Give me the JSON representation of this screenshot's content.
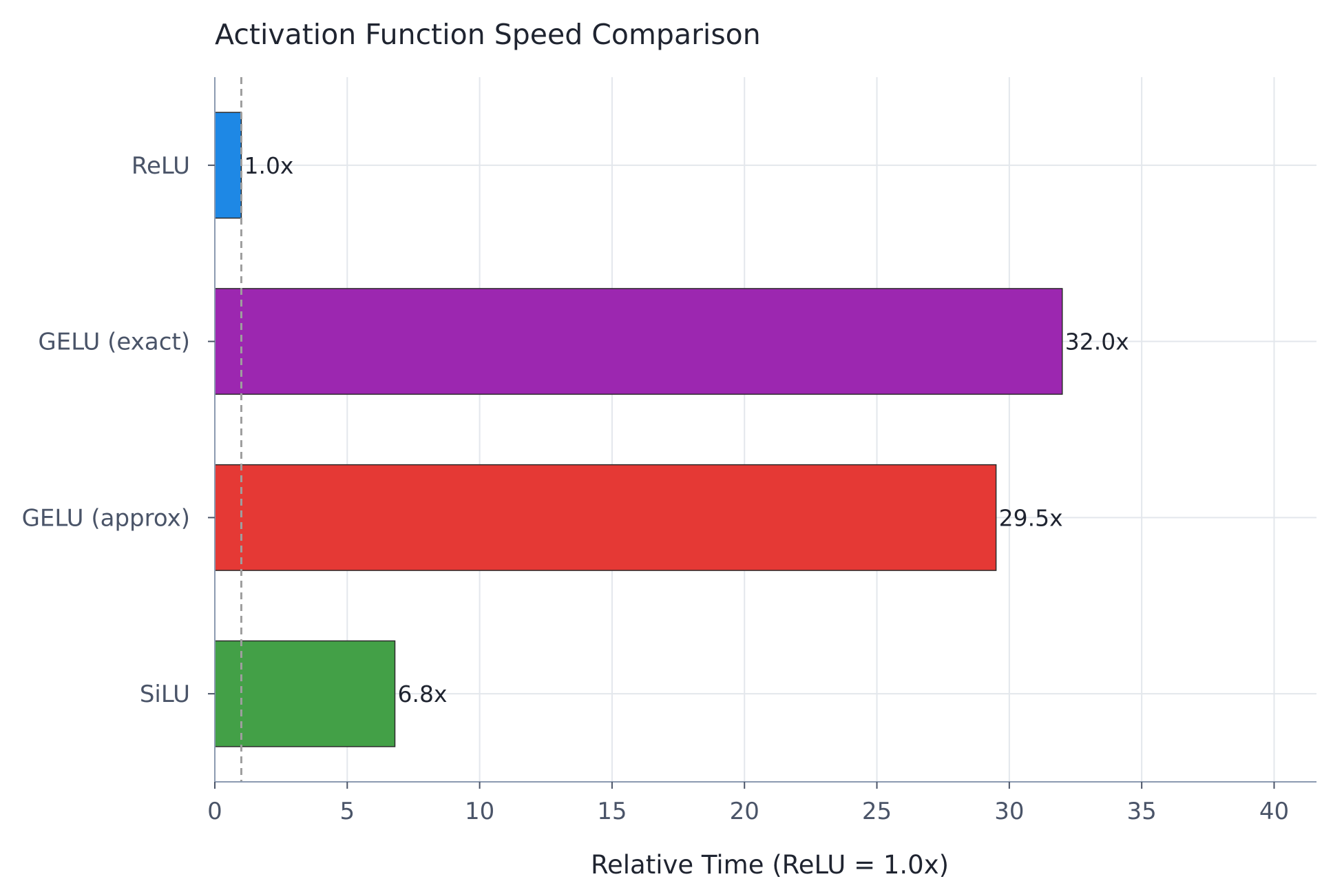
{
  "chart_data": {
    "type": "bar",
    "orientation": "horizontal",
    "title": "Activation Function Speed Comparison",
    "xlabel": "Relative Time (ReLU = 1.0x)",
    "ylabel": "",
    "categories": [
      "ReLU",
      "GELU (exact)",
      "GELU (approx)",
      "SiLU"
    ],
    "values": [
      1.0,
      32.0,
      29.5,
      6.8
    ],
    "value_labels": [
      "1.0x",
      "32.0x",
      "29.5x",
      "6.8x"
    ],
    "colors": [
      "#1e88e5",
      "#9c27b0",
      "#e53935",
      "#43a047"
    ],
    "xlim": [
      0,
      41.6
    ],
    "xticks": [
      0,
      5,
      10,
      15,
      20,
      25,
      30,
      35,
      40
    ],
    "xtick_labels": [
      "0",
      "5",
      "10",
      "15",
      "20",
      "25",
      "30",
      "35",
      "40"
    ],
    "reference_line": {
      "x": 1.0,
      "style": "dashed",
      "color": "#9e9e9e"
    },
    "grid": true,
    "legend": "none"
  }
}
